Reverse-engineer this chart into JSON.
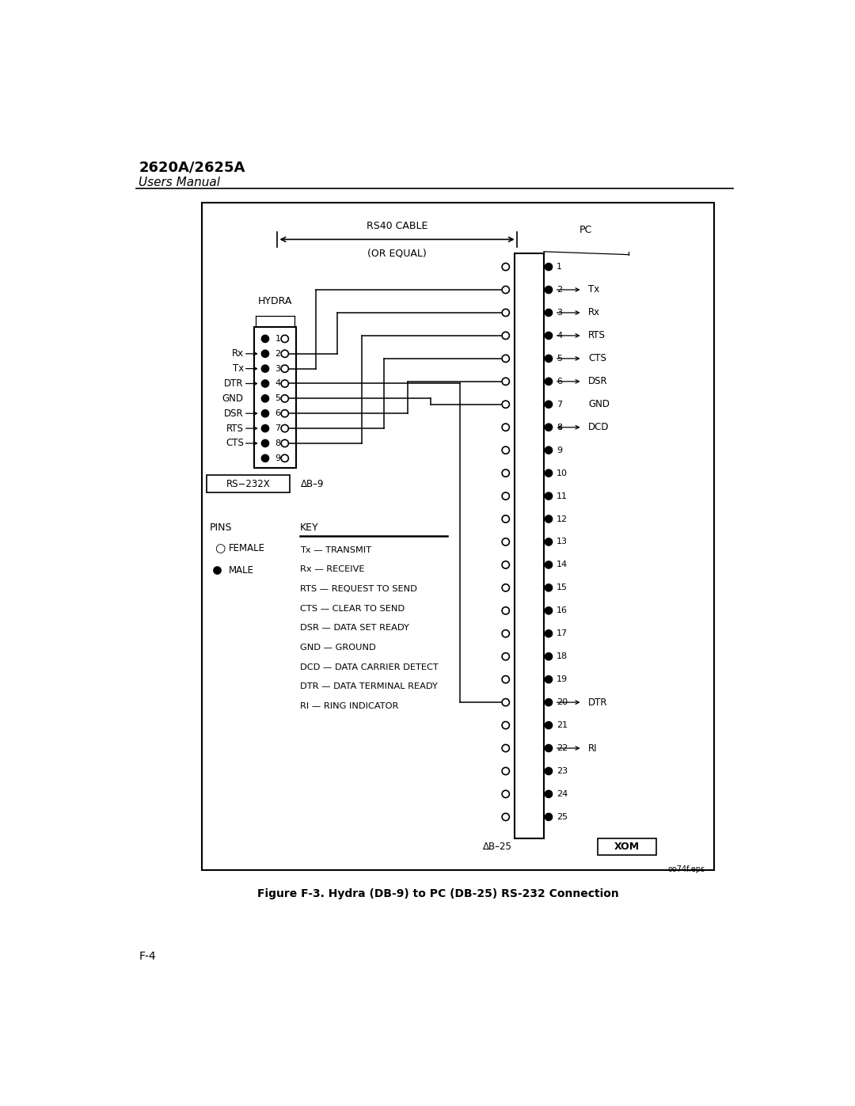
{
  "title_bold": "2620A/2625A",
  "title_italic": "Users Manual",
  "figure_caption": "Figure F-3. Hydra (DB-9) to PC (DB-25) RS-232 Connection",
  "file_ref": "oo74f.eps",
  "hydra_label": "HYDRA",
  "rs232x_label": "RS−232X",
  "db9_label": "ΔB–9",
  "pc_label": "PC",
  "db25_label": "ΔB–25",
  "xom_label": "XOM",
  "cable_line1": "RS40 CABLE",
  "cable_line2": "(OR EQUAL)",
  "pins_label": "PINS",
  "female_label": "FEMALE",
  "male_label": "MALE",
  "key_label": "KEY",
  "key_entries": [
    "Tx — TRANSMIT",
    "Rx — RECEIVE",
    "RTS — REQUEST TO SEND",
    "CTS — CLEAR TO SEND",
    "DSR — DATA SET READY",
    "GND — GROUND",
    "DCD — DATA CARRIER DETECT",
    "DTR — DATA TERMINAL READY",
    "RI — RING INDICATOR"
  ],
  "page_num": "F-4",
  "bg_color": "#ffffff",
  "line_color": "#000000"
}
